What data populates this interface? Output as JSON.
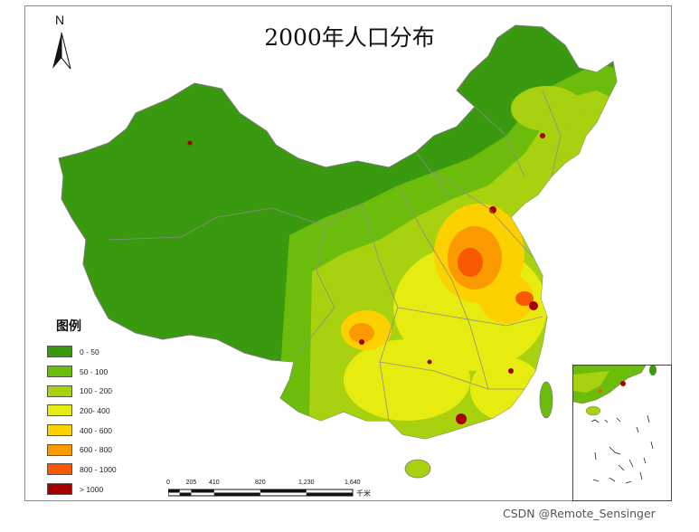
{
  "title": "2000年人口分布",
  "north_arrow": {
    "label": "N"
  },
  "legend": {
    "title": "图例",
    "items": [
      {
        "label": "0 - 50",
        "color": "#3a9a0f"
      },
      {
        "label": "50 - 100",
        "color": "#6cbc0b"
      },
      {
        "label": "100 - 200",
        "color": "#a8d10f"
      },
      {
        "label": "200- 400",
        "color": "#e6ec10"
      },
      {
        "label": "400 - 600",
        "color": "#fdd000"
      },
      {
        "label": "600 - 800",
        "color": "#fb9a00"
      },
      {
        "label": "800 - 1000",
        "color": "#f85800"
      },
      {
        "label": "> 1000",
        "color": "#a80000"
      }
    ]
  },
  "scale_bar": {
    "ticks": [
      "0",
      "205",
      "410",
      "820",
      "1,230",
      "1,640"
    ],
    "unit": "千米"
  },
  "watermark": "CSDN @Remote_Sensinger"
}
